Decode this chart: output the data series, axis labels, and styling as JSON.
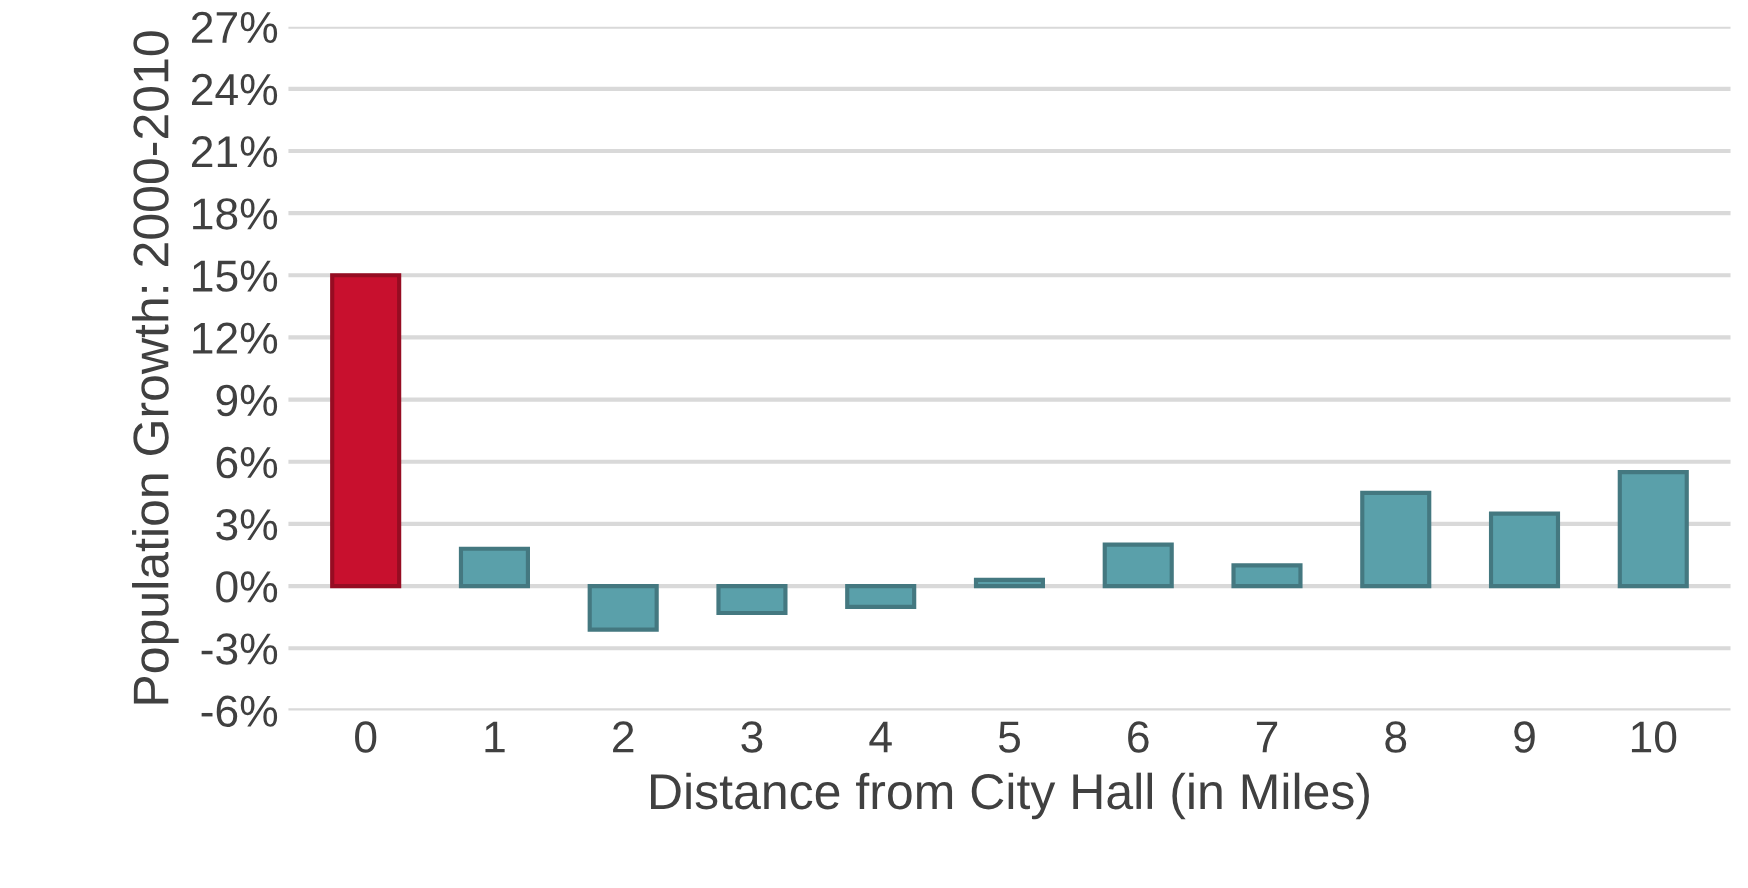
{
  "chart_data": {
    "type": "bar",
    "xlabel": "Distance from City Hall (in Miles)",
    "ylabel": "Population Growth: 2000-2010",
    "categories": [
      "0",
      "1",
      "2",
      "3",
      "4",
      "5",
      "6",
      "7",
      "8",
      "9",
      "10"
    ],
    "values": [
      15.0,
      1.8,
      -2.1,
      -1.3,
      -1.0,
      0.3,
      2.0,
      1.0,
      4.5,
      3.5,
      5.5
    ],
    "colors": [
      "#c8102e",
      "#5aa0aa",
      "#5aa0aa",
      "#5aa0aa",
      "#5aa0aa",
      "#5aa0aa",
      "#5aa0aa",
      "#5aa0aa",
      "#5aa0aa",
      "#5aa0aa",
      "#5aa0aa"
    ],
    "ylim": [
      -6,
      27
    ],
    "yticks": [
      {
        "value": -6,
        "label": "-6%"
      },
      {
        "value": -3,
        "label": "-3%"
      },
      {
        "value": 0,
        "label": "0%"
      },
      {
        "value": 3,
        "label": "3%"
      },
      {
        "value": 6,
        "label": "6%"
      },
      {
        "value": 9,
        "label": "9%"
      },
      {
        "value": 12,
        "label": "12%"
      },
      {
        "value": 15,
        "label": "15%"
      },
      {
        "value": 18,
        "label": "18%"
      },
      {
        "value": 21,
        "label": "21%"
      },
      {
        "value": 24,
        "label": "24%"
      },
      {
        "value": 27,
        "label": "27%"
      }
    ],
    "grid": "y",
    "legend": false
  }
}
